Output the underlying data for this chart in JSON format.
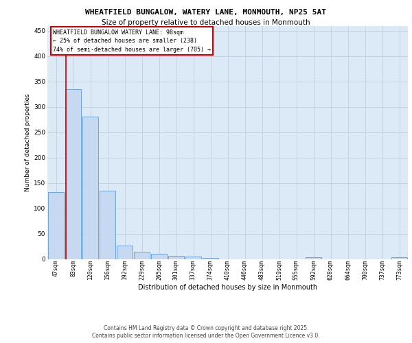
{
  "title1": "WHEATFIELD BUNGALOW, WATERY LANE, MONMOUTH, NP25 5AT",
  "title2": "Size of property relative to detached houses in Monmouth",
  "xlabel": "Distribution of detached houses by size in Monmouth",
  "ylabel": "Number of detached properties",
  "categories": [
    "47sqm",
    "83sqm",
    "120sqm",
    "156sqm",
    "192sqm",
    "229sqm",
    "265sqm",
    "301sqm",
    "337sqm",
    "374sqm",
    "410sqm",
    "446sqm",
    "483sqm",
    "519sqm",
    "555sqm",
    "592sqm",
    "628sqm",
    "664sqm",
    "700sqm",
    "737sqm",
    "773sqm"
  ],
  "values": [
    132,
    335,
    281,
    134,
    27,
    14,
    10,
    6,
    5,
    2,
    0,
    0,
    0,
    0,
    0,
    3,
    0,
    0,
    0,
    0,
    3
  ],
  "bar_color": "#c7d9f0",
  "bar_edge_color": "#5b9bd5",
  "grid_color": "#c0cfe0",
  "background_color": "#dce9f7",
  "annotation_text": "WHEATFIELD BUNGALOW WATERY LANE: 98sqm\n← 25% of detached houses are smaller (238)\n74% of semi-detached houses are larger (705) →",
  "annotation_box_color": "#ffffff",
  "annotation_box_edge": "#cc0000",
  "red_line_index": 1,
  "ylim": [
    0,
    460
  ],
  "yticks": [
    0,
    50,
    100,
    150,
    200,
    250,
    300,
    350,
    400,
    450
  ],
  "footer1": "Contains HM Land Registry data © Crown copyright and database right 2025.",
  "footer2": "Contains public sector information licensed under the Open Government Licence v3.0."
}
